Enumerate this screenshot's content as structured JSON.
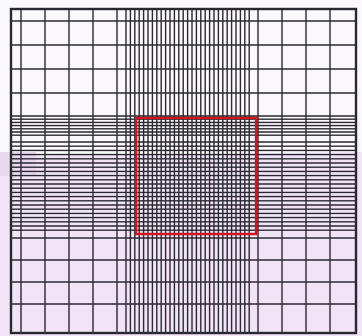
{
  "figure": {
    "kind": "grid-schematic",
    "colors": {
      "background": "#fbf9fd",
      "tint": "#f0e4f6",
      "line": "#2a2830",
      "highlight": "#d0161c"
    },
    "regions": {
      "coarse_cells_per_side": 16,
      "dense_band": "center",
      "tinted_area": "lower-left",
      "highlight_box": "center"
    }
  }
}
